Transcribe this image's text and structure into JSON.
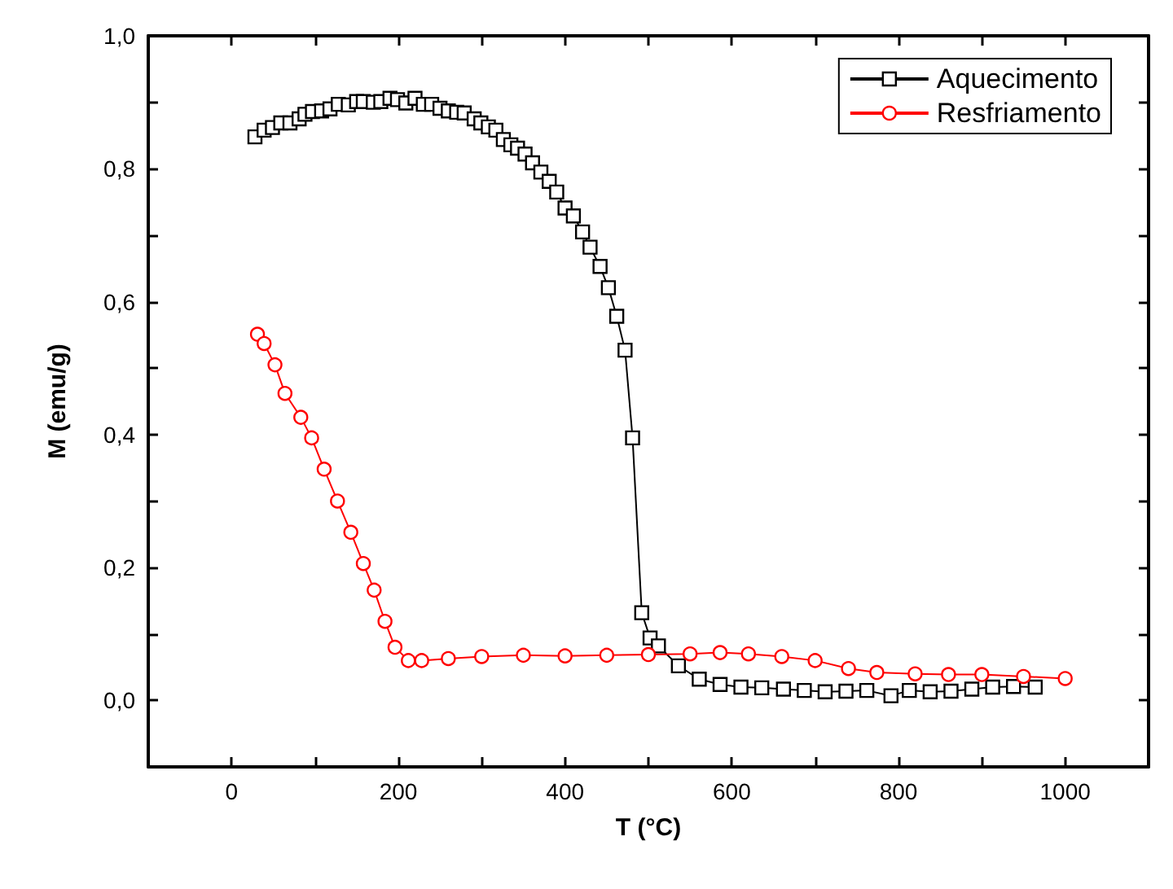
{
  "chart_data": {
    "type": "line",
    "xlabel": "T (°C)",
    "ylabel": "M (emu/g)",
    "xlim": [
      -100,
      1100
    ],
    "xticks": [
      {
        "value": -100,
        "label": null
      },
      0,
      {
        "value": 100,
        "label": null
      },
      200,
      {
        "value": 300,
        "label": null
      },
      400,
      {
        "value": 500,
        "label": null
      },
      600,
      {
        "value": 700,
        "label": null
      },
      800,
      {
        "value": 900,
        "label": null
      },
      1000,
      {
        "value": 1100,
        "label": null
      }
    ],
    "ylim": [
      -0.1,
      1.0
    ],
    "yticks": [
      {
        "value": -0.1,
        "label": null
      },
      {
        "value": 0,
        "label": "0,0"
      },
      {
        "value": 0.1,
        "label": null
      },
      {
        "value": 0.2,
        "label": "0,2"
      },
      {
        "value": 0.3,
        "label": null
      },
      {
        "value": 0.4,
        "label": "0,4"
      },
      {
        "value": 0.5,
        "label": null
      },
      {
        "value": 0.6,
        "label": "0,6"
      },
      {
        "value": 0.7,
        "label": null
      },
      {
        "value": 0.8,
        "label": "0,8"
      },
      {
        "value": 0.9,
        "label": null
      },
      {
        "value": 1.0,
        "label": "1,0"
      }
    ],
    "grid": false,
    "legend": "top right",
    "line_style": "solid",
    "series": [
      {
        "name": "Aquecimento",
        "color": "#000000",
        "marker": "square",
        "x": [
          28,
          39,
          49,
          59,
          70,
          81,
          88,
          97,
          108,
          118,
          128,
          140,
          150,
          158,
          170,
          179,
          190,
          199,
          209,
          220,
          230,
          240,
          250,
          260,
          270,
          279,
          291,
          299,
          308,
          317,
          326,
          335,
          343,
          352,
          361,
          371,
          381,
          390,
          400,
          410,
          421,
          430,
          442,
          452,
          462,
          472,
          481,
          492,
          502,
          512,
          536,
          561,
          586,
          611,
          636,
          662,
          687,
          712,
          737,
          762,
          791,
          813,
          838,
          863,
          888,
          913,
          938,
          964
        ],
        "values": [
          0.848,
          0.858,
          0.862,
          0.869,
          0.869,
          0.875,
          0.882,
          0.886,
          0.887,
          0.89,
          0.897,
          0.896,
          0.901,
          0.901,
          0.9,
          0.901,
          0.906,
          0.904,
          0.899,
          0.906,
          0.897,
          0.897,
          0.891,
          0.887,
          0.885,
          0.884,
          0.875,
          0.869,
          0.863,
          0.858,
          0.844,
          0.836,
          0.831,
          0.822,
          0.809,
          0.795,
          0.781,
          0.765,
          0.741,
          0.729,
          0.705,
          0.682,
          0.653,
          0.621,
          0.578,
          0.527,
          0.395,
          0.132,
          0.094,
          0.082,
          0.052,
          0.032,
          0.024,
          0.02,
          0.019,
          0.017,
          0.015,
          0.013,
          0.014,
          0.015,
          0.007,
          0.015,
          0.013,
          0.014,
          0.017,
          0.02,
          0.021,
          0.02
        ]
      },
      {
        "name": "Resfriamento",
        "color": "#ff0000",
        "marker": "circle",
        "x": [
          31,
          39,
          52,
          64,
          83,
          96,
          111,
          127,
          143,
          158,
          171,
          184,
          196,
          212,
          228,
          260,
          300,
          350,
          400,
          450,
          500,
          550,
          586,
          620,
          660,
          700,
          740,
          774,
          820,
          860,
          900,
          950,
          1000
        ],
        "values": [
          0.551,
          0.537,
          0.505,
          0.462,
          0.426,
          0.395,
          0.348,
          0.3,
          0.253,
          0.206,
          0.166,
          0.119,
          0.08,
          0.06,
          0.06,
          0.063,
          0.066,
          0.068,
          0.067,
          0.068,
          0.069,
          0.07,
          0.072,
          0.07,
          0.066,
          0.06,
          0.048,
          0.042,
          0.04,
          0.039,
          0.039,
          0.036,
          0.033
        ]
      }
    ]
  }
}
